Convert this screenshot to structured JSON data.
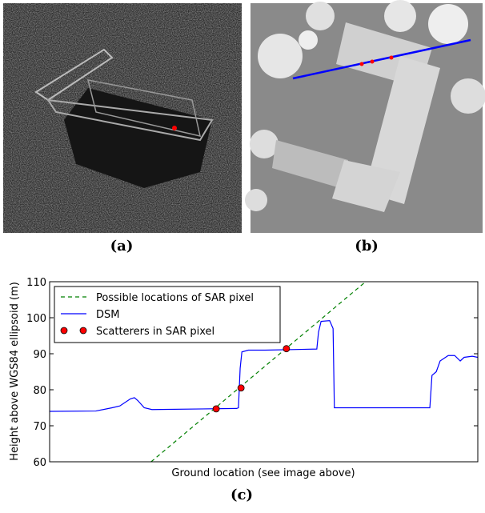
{
  "captions": [
    "(a)",
    "(b)",
    "(c)"
  ],
  "chart_data": {
    "type": "line",
    "x_label": "Ground location (see image above)",
    "y_label": "Height above WGS84 ellipsoid (m)",
    "xlim": [
      0,
      100
    ],
    "ylim": [
      60,
      110
    ],
    "yticks": [
      60,
      70,
      80,
      90,
      100,
      110
    ],
    "legend": "upper left",
    "series": [
      {
        "name": "Possible locations of SAR pixel",
        "color": "#008000",
        "style": "dashed",
        "x": [
          23.7,
          73.8
        ],
        "values": [
          60,
          110
        ]
      },
      {
        "name": "DSM",
        "color": "#0000ff",
        "style": "solid",
        "x": [
          0,
          10.8,
          14.6,
          16.4,
          18.9,
          19.8,
          20.6,
          22.1,
          23.9,
          43.7,
          44.1,
          44.5,
          44.9,
          46.4,
          50.3,
          62.4,
          62.8,
          63.4,
          65.4,
          66.2,
          66.5,
          68.8,
          88.8,
          89.3,
          90.3,
          91.2,
          93.1,
          94.6,
          95.9,
          96.8,
          98.7,
          100
        ],
        "values": [
          74,
          74.1,
          75,
          75.5,
          77.5,
          77.8,
          77,
          75,
          74.5,
          74.8,
          75,
          86,
          90.5,
          91,
          91,
          91.3,
          96,
          99,
          99.2,
          97,
          75,
          75,
          75,
          84,
          85,
          88,
          89.5,
          89.5,
          88,
          89,
          89.3,
          89
        ]
      },
      {
        "name": "Scatterers in SAR pixel",
        "color": "#ff0000",
        "style": "markers",
        "x": [
          38.9,
          44.7,
          55.3
        ],
        "values": [
          74.7,
          80.5,
          91.4
        ]
      }
    ]
  }
}
